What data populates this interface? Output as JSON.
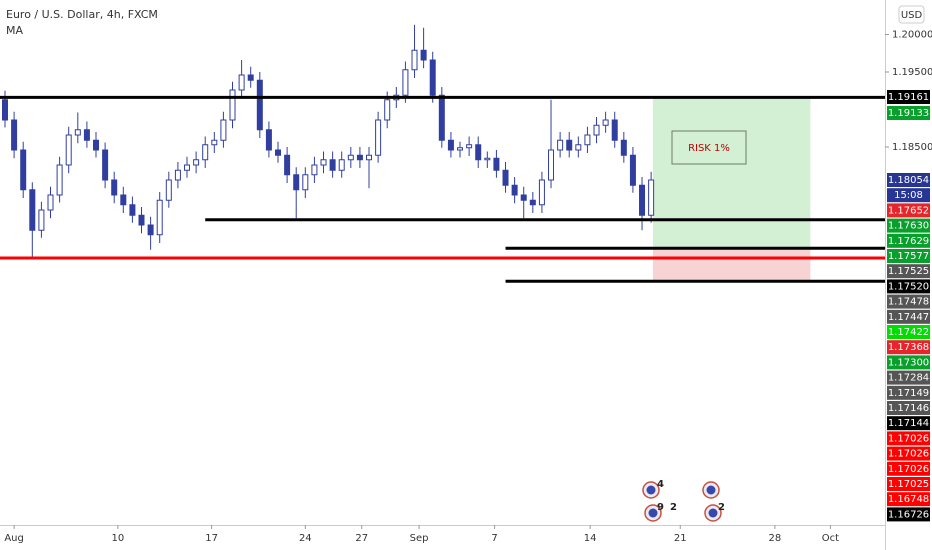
{
  "header": {
    "symbol": "Euro / U.S. Dollar, 4h, FXCM",
    "indicator": "MA",
    "currency": "USD"
  },
  "chart_data": {
    "type": "candlestick",
    "color": "#303f9f",
    "ylim": [
      1.1346,
      1.2046
    ],
    "xlim": [
      -0.55,
      96.7
    ],
    "yticks": [
      {
        "value": 1.2,
        "label": "1.20000"
      },
      {
        "value": 1.195,
        "label": "1.19500"
      },
      {
        "value": 1.185,
        "label": "1.18500"
      }
    ],
    "xticks": [
      {
        "value": 1,
        "label": "Aug"
      },
      {
        "value": 12.4,
        "label": "10"
      },
      {
        "value": 22.7,
        "label": "17"
      },
      {
        "value": 33,
        "label": "24"
      },
      {
        "value": 39.2,
        "label": "27"
      },
      {
        "value": 45.5,
        "label": "Sep"
      },
      {
        "value": 53.8,
        "label": "7"
      },
      {
        "value": 64.3,
        "label": "14"
      },
      {
        "value": 74.2,
        "label": "21"
      },
      {
        "value": 84.6,
        "label": "28"
      },
      {
        "value": 90.7,
        "label": "Oct"
      }
    ],
    "candles": [
      [
        1.1913,
        1.1925,
        1.1876,
        1.1886
      ],
      [
        1.1886,
        1.1897,
        1.1835,
        1.1846
      ],
      [
        1.1846,
        1.1857,
        1.1782,
        1.1793
      ],
      [
        1.1793,
        1.1803,
        1.1702,
        1.1739
      ],
      [
        1.1739,
        1.1777,
        1.1729,
        1.1766
      ],
      [
        1.1766,
        1.1797,
        1.1755,
        1.1786
      ],
      [
        1.1786,
        1.1837,
        1.1776,
        1.1826
      ],
      [
        1.1826,
        1.1877,
        1.1815,
        1.1866
      ],
      [
        1.1866,
        1.1896,
        1.1855,
        1.1873
      ],
      [
        1.1873,
        1.1884,
        1.1849,
        1.1859
      ],
      [
        1.1859,
        1.187,
        1.1836,
        1.1846
      ],
      [
        1.1846,
        1.1856,
        1.1795,
        1.1806
      ],
      [
        1.1806,
        1.1817,
        1.1775,
        1.1786
      ],
      [
        1.1786,
        1.1797,
        1.1762,
        1.1773
      ],
      [
        1.1773,
        1.1784,
        1.1749,
        1.1759
      ],
      [
        1.1759,
        1.177,
        1.1735,
        1.1746
      ],
      [
        1.1746,
        1.1757,
        1.1713,
        1.1733
      ],
      [
        1.1733,
        1.179,
        1.1722,
        1.1779
      ],
      [
        1.1779,
        1.1817,
        1.1769,
        1.1806
      ],
      [
        1.1806,
        1.183,
        1.1795,
        1.1819
      ],
      [
        1.1819,
        1.1837,
        1.1809,
        1.1826
      ],
      [
        1.1826,
        1.1844,
        1.1815,
        1.1833
      ],
      [
        1.1833,
        1.1864,
        1.1822,
        1.1853
      ],
      [
        1.1853,
        1.187,
        1.1842,
        1.1859
      ],
      [
        1.1859,
        1.1897,
        1.1849,
        1.1886
      ],
      [
        1.1886,
        1.1937,
        1.1875,
        1.1926
      ],
      [
        1.1926,
        1.1966,
        1.1915,
        1.1946
      ],
      [
        1.1946,
        1.1957,
        1.1929,
        1.1939
      ],
      [
        1.1939,
        1.195,
        1.1862,
        1.1873
      ],
      [
        1.1873,
        1.1884,
        1.1836,
        1.1846
      ],
      [
        1.1846,
        1.1857,
        1.1829,
        1.1839
      ],
      [
        1.1839,
        1.185,
        1.1802,
        1.1813
      ],
      [
        1.1813,
        1.1823,
        1.1755,
        1.1793
      ],
      [
        1.1793,
        1.1823,
        1.1782,
        1.1813
      ],
      [
        1.1813,
        1.1837,
        1.1802,
        1.1826
      ],
      [
        1.1826,
        1.1844,
        1.1815,
        1.1833
      ],
      [
        1.1833,
        1.1844,
        1.1809,
        1.1819
      ],
      [
        1.1819,
        1.1844,
        1.1809,
        1.1833
      ],
      [
        1.1833,
        1.185,
        1.1822,
        1.1839
      ],
      [
        1.1839,
        1.185,
        1.1822,
        1.1833
      ],
      [
        1.1833,
        1.185,
        1.1795,
        1.1839
      ],
      [
        1.1839,
        1.1897,
        1.1829,
        1.1886
      ],
      [
        1.1886,
        1.1924,
        1.1875,
        1.1913
      ],
      [
        1.1913,
        1.193,
        1.1902,
        1.1919
      ],
      [
        1.1919,
        1.1964,
        1.1909,
        1.1953
      ],
      [
        1.1953,
        1.2013,
        1.1942,
        1.1979
      ],
      [
        1.1979,
        1.2009,
        1.1955,
        1.1966
      ],
      [
        1.1966,
        1.1977,
        1.1909,
        1.1919
      ],
      [
        1.1919,
        1.193,
        1.1849,
        1.1859
      ],
      [
        1.1859,
        1.187,
        1.1836,
        1.1846
      ],
      [
        1.1846,
        1.1857,
        1.1836,
        1.1849
      ],
      [
        1.1849,
        1.1864,
        1.1838,
        1.1853
      ],
      [
        1.1853,
        1.1864,
        1.1822,
        1.1833
      ],
      [
        1.1833,
        1.1844,
        1.1822,
        1.1835
      ],
      [
        1.1835,
        1.1846,
        1.1809,
        1.1819
      ],
      [
        1.1819,
        1.183,
        1.1789,
        1.1799
      ],
      [
        1.1799,
        1.181,
        1.1775,
        1.1786
      ],
      [
        1.1786,
        1.1797,
        1.1755,
        1.1779
      ],
      [
        1.1779,
        1.179,
        1.1762,
        1.1773
      ],
      [
        1.1773,
        1.1817,
        1.1762,
        1.1806
      ],
      [
        1.1806,
        1.1913,
        1.1795,
        1.1846
      ],
      [
        1.1846,
        1.187,
        1.1836,
        1.1859
      ],
      [
        1.1859,
        1.187,
        1.1836,
        1.1846
      ],
      [
        1.1846,
        1.1864,
        1.1836,
        1.1853
      ],
      [
        1.1853,
        1.1877,
        1.1842,
        1.1866
      ],
      [
        1.1866,
        1.189,
        1.1855,
        1.1879
      ],
      [
        1.1879,
        1.1897,
        1.1869,
        1.1886
      ],
      [
        1.1886,
        1.1897,
        1.1849,
        1.1859
      ],
      [
        1.1859,
        1.187,
        1.1829,
        1.1839
      ],
      [
        1.1839,
        1.185,
        1.1789,
        1.1799
      ],
      [
        1.1799,
        1.181,
        1.1739,
        1.1759
      ],
      [
        1.1759,
        1.1817,
        1.1749,
        1.1806
      ]
    ],
    "levels": [
      {
        "value": 1.19161,
        "from": -0.55,
        "color": "#000000"
      },
      {
        "value": 1.1753,
        "from": 22,
        "color": "#000000"
      },
      {
        "value": 1.1702,
        "from": -0.55,
        "color": "#ff0000"
      },
      {
        "value": 1.1715,
        "from": 55,
        "color": "#000000"
      },
      {
        "value": 1.1671,
        "from": 55,
        "color": "#000000"
      }
    ],
    "position": {
      "from": 71.2,
      "to": 88.5,
      "target": 1.19161,
      "entry": 1.1715,
      "stop": 1.1671,
      "label": "RISK 1%",
      "profit_color": "#d3efd4",
      "loss_color": "#f7d3d4"
    },
    "price_tags": [
      {
        "label": "1.19161",
        "color": "#000000"
      },
      {
        "label": "1.19133",
        "color": "#089f2a"
      },
      {
        "label": "1.18054",
        "color": "#283593"
      },
      {
        "label": "15:08",
        "color": "#283593"
      },
      {
        "label": "1.17652",
        "color": "#e5252a"
      },
      {
        "label": "1.17630",
        "color": "#089f2a"
      },
      {
        "label": "1.17629",
        "color": "#089f2a"
      },
      {
        "label": "1.17577",
        "color": "#089f2a"
      },
      {
        "label": "1.17525",
        "color": "#555555"
      },
      {
        "label": "1.17520",
        "color": "#000000"
      },
      {
        "label": "1.17478",
        "color": "#555555"
      },
      {
        "label": "1.17447",
        "color": "#555555"
      },
      {
        "label": "1.17422",
        "color": "#00dd00"
      },
      {
        "label": "1.17368",
        "color": "#e5252a"
      },
      {
        "label": "1.17300",
        "color": "#089f2a"
      },
      {
        "label": "1.17284",
        "color": "#555555"
      },
      {
        "label": "1.17149",
        "color": "#555555"
      },
      {
        "label": "1.17146",
        "color": "#555555"
      },
      {
        "label": "1.17144",
        "color": "#000000"
      },
      {
        "label": "1.17026",
        "color": "#ff0000"
      },
      {
        "label": "1.17026",
        "color": "#ff0000"
      },
      {
        "label": "1.17026",
        "color": "#ff0000"
      },
      {
        "label": "1.17025",
        "color": "#ff0000"
      },
      {
        "label": "1.16748",
        "color": "#ff0000"
      },
      {
        "label": "1.16726",
        "color": "#000000"
      }
    ],
    "event_badges": [
      4,
      9,
      2,
      2
    ]
  }
}
